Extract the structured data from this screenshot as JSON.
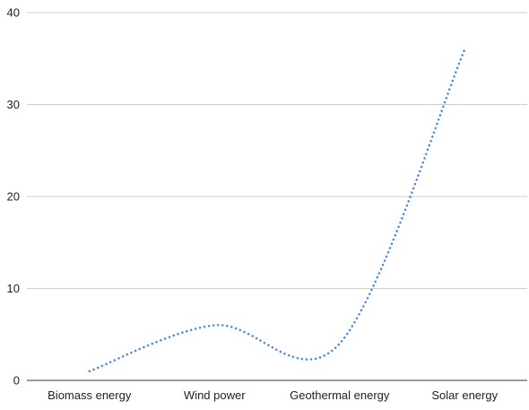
{
  "chart_data": {
    "type": "line",
    "smooth": true,
    "categories": [
      "Biomass energy",
      "Wind power",
      "Geothermal energy",
      "Solar energy"
    ],
    "series": [
      {
        "values": [
          1,
          6,
          4,
          36
        ]
      }
    ],
    "ylim": [
      0,
      40
    ],
    "yticks": [
      0,
      10,
      20,
      30,
      40
    ],
    "grid": true,
    "legend": "none",
    "line_style": "dotted",
    "colors": {
      "line": "#4a86e8",
      "grid": "#cccccc",
      "axis": "#333333",
      "text": "#222222"
    }
  }
}
